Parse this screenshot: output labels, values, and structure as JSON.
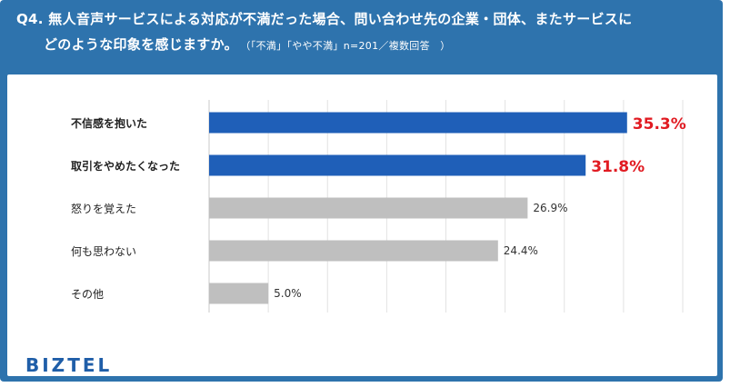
{
  "header": {
    "title_line1": "Q4. 無人音声サービスによる対応が不満だった場合、問い合わせ先の企業・団体、またサービスに",
    "title_line2": "どのような印象を感じますか。",
    "note": "（「不満」「やや不満」n=201／複数回答　）"
  },
  "logo": "BIZTEL",
  "colors": {
    "header_bg": "#2e73ad",
    "highlight_bar": "#1f5fb8",
    "normal_bar": "#bfbfbf",
    "highlight_label": "#e11b22"
  },
  "chart_data": {
    "type": "bar",
    "orientation": "horizontal",
    "categories": [
      "不信感を抱いた",
      "取引をやめたくなった",
      "怒りを覚えた",
      "何も思わない",
      "その他"
    ],
    "values": [
      35.3,
      31.8,
      26.9,
      24.4,
      5.0
    ],
    "value_labels": [
      "35.3%",
      "31.8%",
      "26.9%",
      "24.4%",
      "5.0%"
    ],
    "highlighted": [
      true,
      true,
      false,
      false,
      false
    ],
    "xlim": [
      0,
      40
    ],
    "grid": true
  }
}
